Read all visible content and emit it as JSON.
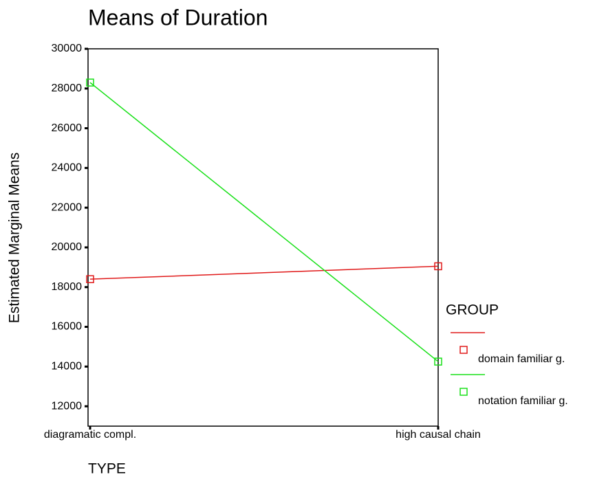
{
  "chart_data": {
    "type": "line",
    "title": "Means of Duration",
    "x_label": "TYPE",
    "y_label": "Estimated Marginal Means",
    "legend_title": "GROUP",
    "categories": [
      "diagramatic compl.",
      "high causal chain"
    ],
    "series": [
      {
        "name": "domain familiar g.",
        "color": "#e01818",
        "values": [
          18400,
          19050
        ]
      },
      {
        "name": "notation familiar g.",
        "color": "#18e018",
        "values": [
          28300,
          14250
        ]
      }
    ],
    "ylim": [
      11000,
      30000
    ],
    "yticks": [
      12000,
      14000,
      16000,
      18000,
      20000,
      22000,
      24000,
      26000,
      28000,
      30000
    ],
    "legend": "right"
  }
}
